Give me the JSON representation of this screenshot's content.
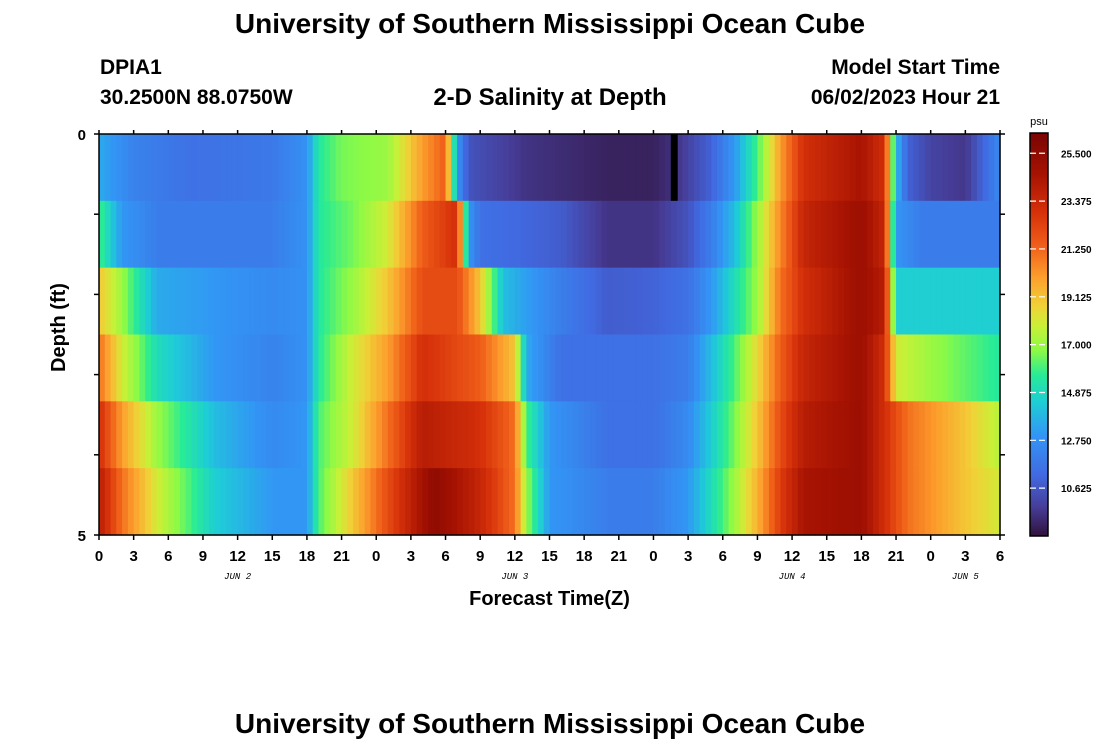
{
  "header": {
    "title": "University of Southern Mississippi Ocean Cube",
    "station": "DPIA1",
    "coordinates": "30.2500N  88.0750W",
    "plot_title": "2-D Salinity at Depth",
    "model_start_label": "Model Start Time",
    "model_start_value": "06/02/2023 Hour 21"
  },
  "footer": {
    "title": "University of Southern Mississippi Ocean Cube"
  },
  "chart_data": {
    "type": "heatmap",
    "title": "2-D Salinity at Depth",
    "xlabel": "Forecast Time(Z)",
    "ylabel": "Depth (ft)",
    "xlim": [
      0,
      78
    ],
    "ylim": [
      0,
      5
    ],
    "x_tick_labels": [
      "0",
      "3",
      "6",
      "9",
      "12",
      "15",
      "18",
      "21",
      "0",
      "3",
      "6",
      "9",
      "12",
      "15",
      "18",
      "21",
      "0",
      "3",
      "6",
      "9",
      "12",
      "15",
      "18",
      "21",
      "0",
      "3",
      "6"
    ],
    "y_tick_labels": [
      "0",
      "5"
    ],
    "day_labels": [
      {
        "label": "JUN 2",
        "x": 12
      },
      {
        "label": "JUN 3",
        "x": 36
      },
      {
        "label": "JUN 4",
        "x": 60
      },
      {
        "label": "JUN 5",
        "x": 75
      }
    ],
    "colorbar": {
      "unit": "psu",
      "range": [
        8.5,
        26.4
      ],
      "tick_labels": [
        "25.500",
        "23.375",
        "21.250",
        "19.125",
        "17.000",
        "14.875",
        "12.750",
        "10.625"
      ]
    },
    "depth_bands": [
      {
        "knots": [
          [
            0,
            13.5
          ],
          [
            3,
            12.2
          ],
          [
            8,
            11.5
          ],
          [
            15,
            11.8
          ],
          [
            18,
            12.8
          ],
          [
            19,
            15.5
          ],
          [
            21,
            16.5
          ],
          [
            25,
            17
          ],
          [
            28,
            20
          ],
          [
            30,
            21.5
          ],
          [
            31,
            13
          ],
          [
            32,
            10.5
          ],
          [
            37,
            9.5
          ],
          [
            44,
            9
          ],
          [
            48,
            9
          ],
          [
            50,
            9.5
          ],
          [
            53,
            11
          ],
          [
            55,
            13
          ],
          [
            57,
            16
          ],
          [
            59,
            20
          ],
          [
            61,
            23
          ],
          [
            66,
            24.5
          ],
          [
            68,
            23
          ],
          [
            69,
            14
          ],
          [
            70,
            11
          ],
          [
            72,
            10
          ],
          [
            75,
            9.6
          ],
          [
            77,
            11.5
          ],
          [
            78,
            12.5
          ]
        ]
      },
      {
        "knots": [
          [
            0,
            16
          ],
          [
            2,
            13
          ],
          [
            5,
            12
          ],
          [
            15,
            12
          ],
          [
            18,
            12.8
          ],
          [
            19,
            15.5
          ],
          [
            22,
            16.5
          ],
          [
            25,
            18
          ],
          [
            28,
            21.5
          ],
          [
            31,
            23
          ],
          [
            32,
            13
          ],
          [
            33,
            11.5
          ],
          [
            40,
            10.8
          ],
          [
            44,
            9.5
          ],
          [
            48,
            9.5
          ],
          [
            51,
            10.5
          ],
          [
            53,
            12
          ],
          [
            55,
            14
          ],
          [
            57,
            17
          ],
          [
            59,
            20.5
          ],
          [
            61,
            23.5
          ],
          [
            66,
            25
          ],
          [
            68,
            23.5
          ],
          [
            69,
            13
          ],
          [
            71,
            12
          ],
          [
            78,
            12
          ]
        ]
      },
      {
        "knots": [
          [
            0,
            19
          ],
          [
            2,
            17
          ],
          [
            5,
            13.5
          ],
          [
            15,
            12.5
          ],
          [
            18,
            12.8
          ],
          [
            19,
            15.5
          ],
          [
            22,
            17
          ],
          [
            25,
            19
          ],
          [
            28,
            22
          ],
          [
            31,
            22
          ],
          [
            33,
            19
          ],
          [
            35,
            14
          ],
          [
            40,
            12
          ],
          [
            44,
            10.8
          ],
          [
            48,
            11
          ],
          [
            51,
            11.5
          ],
          [
            53,
            13
          ],
          [
            55,
            15
          ],
          [
            57,
            17
          ],
          [
            59,
            21
          ],
          [
            61,
            23
          ],
          [
            66,
            25
          ],
          [
            68,
            24
          ],
          [
            69,
            14.5
          ],
          [
            78,
            14.5
          ]
        ]
      },
      {
        "knots": [
          [
            0,
            21
          ],
          [
            2,
            18
          ],
          [
            5,
            15
          ],
          [
            10,
            13
          ],
          [
            15,
            12.2
          ],
          [
            18,
            12.8
          ],
          [
            19,
            15.5
          ],
          [
            22,
            18
          ],
          [
            25,
            20
          ],
          [
            28,
            23
          ],
          [
            33,
            21.5
          ],
          [
            36,
            19
          ],
          [
            37,
            13.5
          ],
          [
            40,
            11.5
          ],
          [
            48,
            11.5
          ],
          [
            51,
            12
          ],
          [
            53,
            14
          ],
          [
            55,
            16
          ],
          [
            57,
            18.5
          ],
          [
            59,
            21.5
          ],
          [
            61,
            23.5
          ],
          [
            66,
            25
          ],
          [
            68,
            23
          ],
          [
            69,
            18
          ],
          [
            72,
            17
          ],
          [
            78,
            15.5
          ]
        ]
      },
      {
        "knots": [
          [
            0,
            23
          ],
          [
            2,
            20
          ],
          [
            5,
            17
          ],
          [
            10,
            14
          ],
          [
            15,
            12.5
          ],
          [
            18,
            13
          ],
          [
            19,
            16
          ],
          [
            22,
            18
          ],
          [
            25,
            21
          ],
          [
            28,
            24
          ],
          [
            33,
            23
          ],
          [
            36,
            21
          ],
          [
            37,
            16
          ],
          [
            39,
            13
          ],
          [
            44,
            11.5
          ],
          [
            48,
            11.5
          ],
          [
            51,
            12.5
          ],
          [
            53,
            14.5
          ],
          [
            55,
            16.5
          ],
          [
            57,
            19
          ],
          [
            59,
            22
          ],
          [
            61,
            24
          ],
          [
            66,
            25
          ],
          [
            68,
            23
          ],
          [
            70,
            21
          ],
          [
            75,
            19
          ],
          [
            78,
            17.5
          ]
        ]
      },
      {
        "knots": [
          [
            0,
            24
          ],
          [
            2,
            21
          ],
          [
            5,
            18
          ],
          [
            10,
            14.5
          ],
          [
            15,
            13
          ],
          [
            18,
            13
          ],
          [
            19,
            16
          ],
          [
            22,
            19
          ],
          [
            25,
            22
          ],
          [
            29,
            25.5
          ],
          [
            33,
            23.5
          ],
          [
            36,
            21
          ],
          [
            37,
            17
          ],
          [
            39,
            13
          ],
          [
            44,
            12
          ],
          [
            48,
            12
          ],
          [
            51,
            13
          ],
          [
            53,
            15
          ],
          [
            55,
            17
          ],
          [
            57,
            19.5
          ],
          [
            59,
            22.5
          ],
          [
            61,
            24.5
          ],
          [
            66,
            25
          ],
          [
            68,
            23
          ],
          [
            70,
            21
          ],
          [
            75,
            19
          ],
          [
            78,
            18
          ]
        ]
      }
    ],
    "missing_cells": [
      {
        "band": 0,
        "x": 49.5
      }
    ]
  }
}
